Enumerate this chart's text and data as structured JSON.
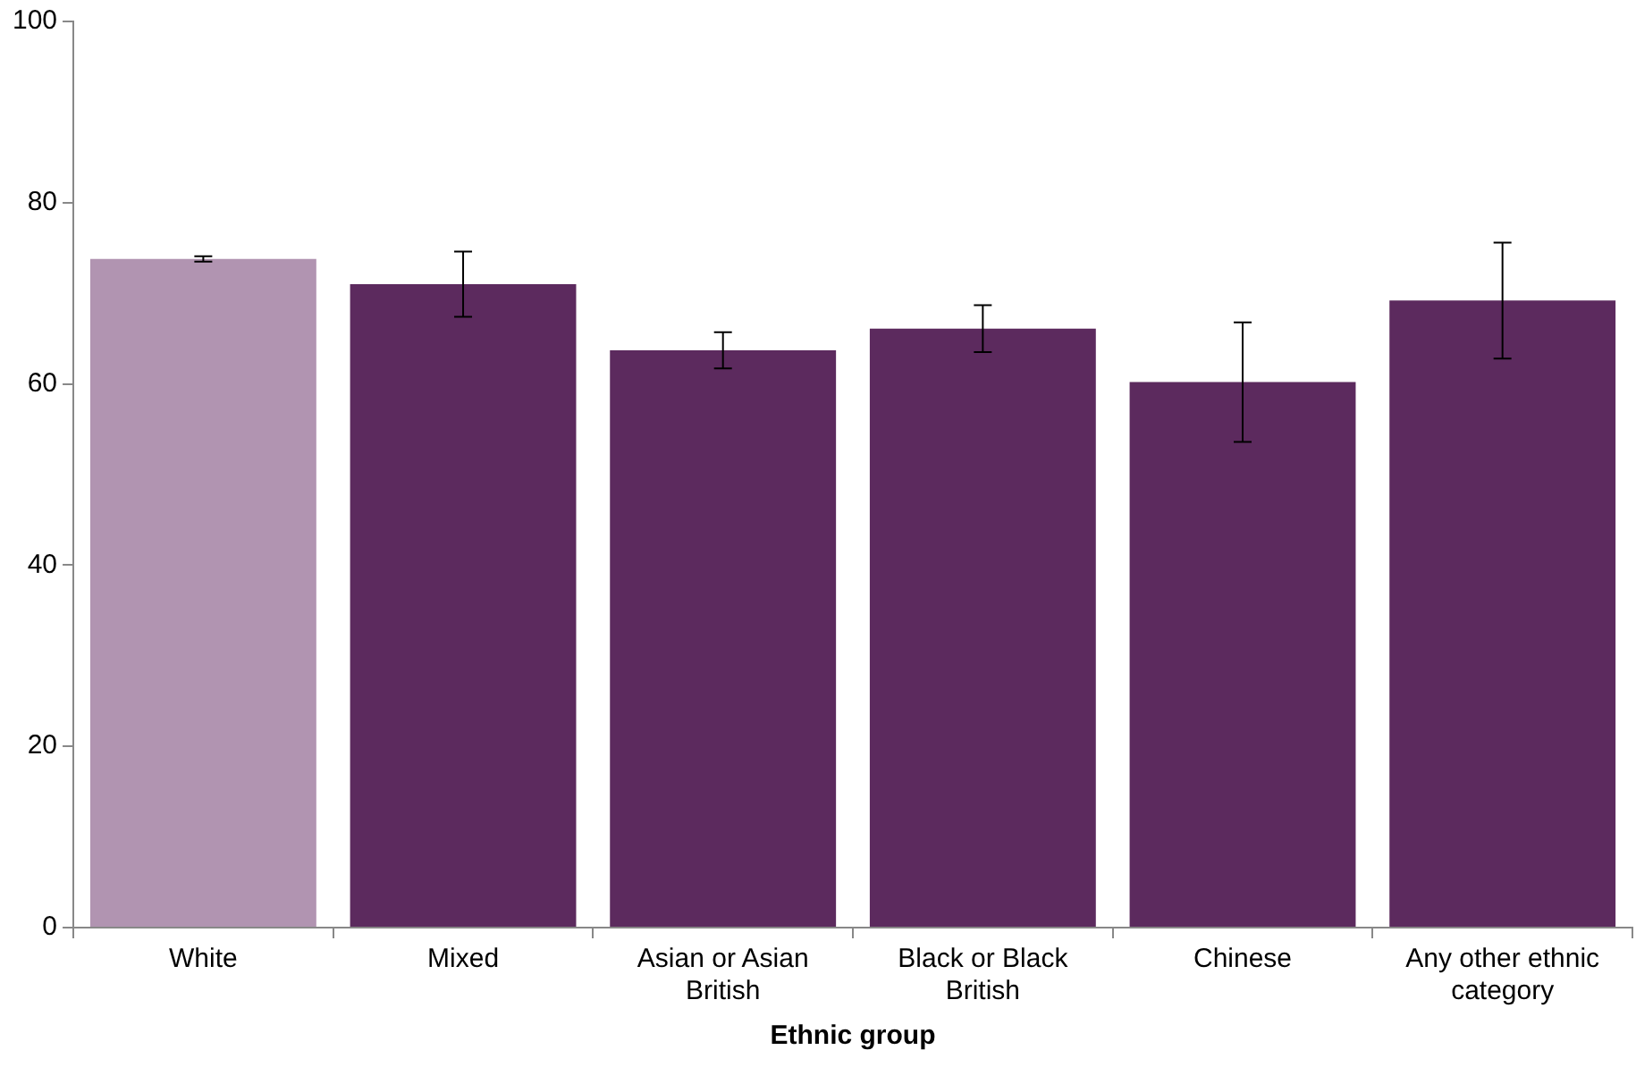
{
  "chart_data": {
    "type": "bar",
    "xlabel": "Ethnic group",
    "categories": [
      "White",
      "Mixed",
      "Asian or Asian British",
      "Black or Black British",
      "Chinese",
      "Any other ethnic category"
    ],
    "values": [
      73.8,
      71.0,
      63.7,
      66.1,
      60.2,
      69.2
    ],
    "errors": [
      0.3,
      3.6,
      2.0,
      2.6,
      6.6,
      6.4
    ],
    "colors": [
      "#b194b1",
      "#5c2a5e",
      "#5c2a5e",
      "#5c2a5e",
      "#5c2a5e",
      "#5c2a5e"
    ],
    "ylim": [
      0,
      100
    ],
    "yticks": [
      0,
      20,
      40,
      60,
      80,
      100
    ],
    "grid": false,
    "legend": false
  }
}
